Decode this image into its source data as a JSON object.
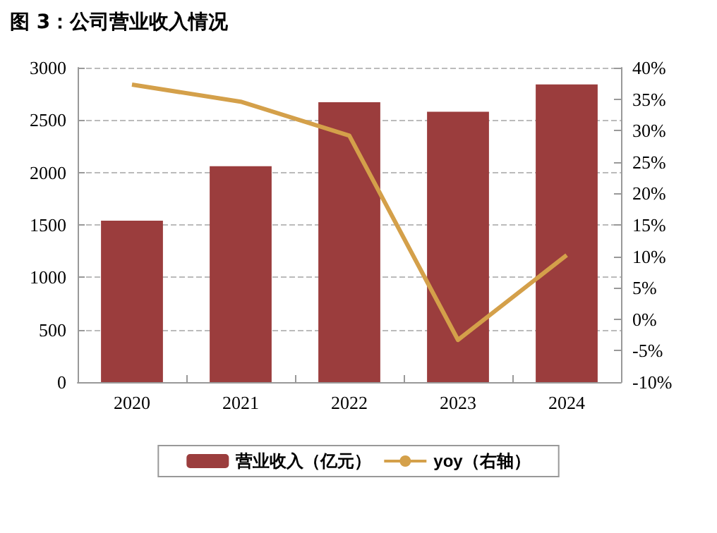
{
  "chart_data": {
    "type": "bar",
    "title": "图 3：公司营业收入情况",
    "categories": [
      "2020",
      "2021",
      "2022",
      "2023",
      "2024"
    ],
    "series": [
      {
        "name": "营业收入（亿元）",
        "color": "#9b3d3d",
        "values": [
          1540,
          2060,
          2670,
          2580,
          2840
        ]
      },
      {
        "name": "yoy（右轴）",
        "type": "line",
        "axis": "y2",
        "color": "#d4a04a",
        "values": [
          37.3,
          34.6,
          29.2,
          -3.3,
          10.2
        ]
      }
    ],
    "ylim": [
      0,
      3000
    ],
    "yticks": [
      0,
      500,
      1000,
      1500,
      2000,
      2500,
      3000
    ],
    "y2lim": [
      -10,
      40
    ],
    "y2ticks": [
      {
        "value": -10,
        "label": "-10%"
      },
      {
        "value": -5,
        "label": "-5%"
      },
      {
        "value": 0,
        "label": "0%"
      },
      {
        "value": 5,
        "label": "5%"
      },
      {
        "value": 10,
        "label": "10%"
      },
      {
        "value": 15,
        "label": "15%"
      },
      {
        "value": 20,
        "label": "20%"
      },
      {
        "value": 25,
        "label": "25%"
      },
      {
        "value": 30,
        "label": "30%"
      },
      {
        "value": 35,
        "label": "35%"
      },
      {
        "value": 40,
        "label": "40%"
      }
    ],
    "grid": "y",
    "legend": "bottom",
    "marker": "none",
    "line_style": "solid"
  }
}
